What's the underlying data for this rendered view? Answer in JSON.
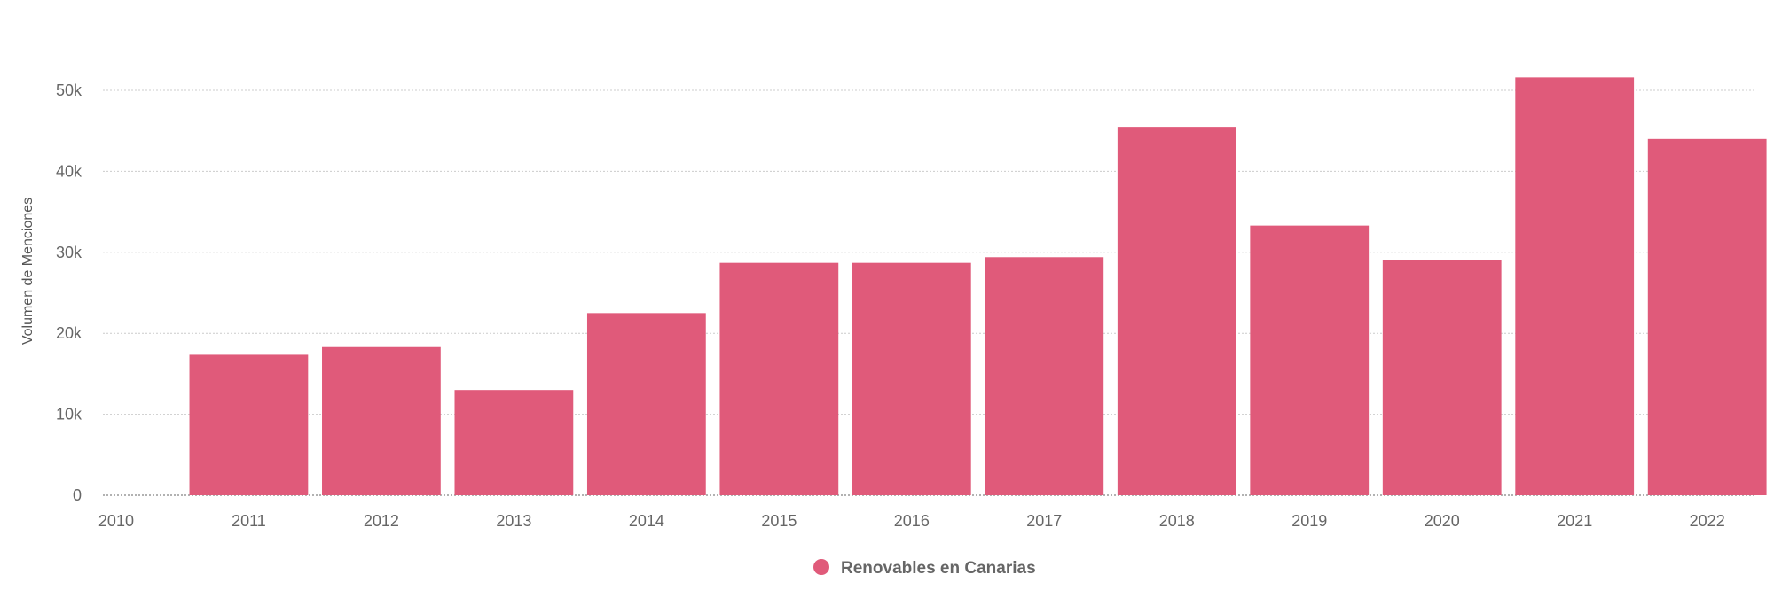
{
  "chart_data": {
    "type": "bar",
    "title": "",
    "xlabel": "",
    "ylabel": "Volumen de Menciones",
    "x_ticks": [
      "2010",
      "2011",
      "2012",
      "2013",
      "2014",
      "2015",
      "2016",
      "2017",
      "2018",
      "2019",
      "2020",
      "2021",
      "2022"
    ],
    "y_ticks": [
      {
        "value": 0,
        "label": "0"
      },
      {
        "value": 10000,
        "label": "10k"
      },
      {
        "value": 20000,
        "label": "20k"
      },
      {
        "value": 30000,
        "label": "30k"
      },
      {
        "value": 40000,
        "label": "40k"
      },
      {
        "value": 50000,
        "label": "50k"
      }
    ],
    "xlim": [
      2009.9,
      2022.35
    ],
    "ylim": [
      0,
      53500
    ],
    "grid": true,
    "legend_position": "bottom-center",
    "color": "#e05a7a",
    "series": [
      {
        "name": "Renovables en Canarias",
        "x": [
          2011,
          2012,
          2013,
          2014,
          2015,
          2016,
          2017,
          2018,
          2019,
          2020,
          2021,
          2022
        ],
        "values": [
          17350,
          18300,
          13000,
          22500,
          28700,
          28700,
          29400,
          45500,
          33300,
          29100,
          51600,
          44000
        ]
      }
    ]
  }
}
